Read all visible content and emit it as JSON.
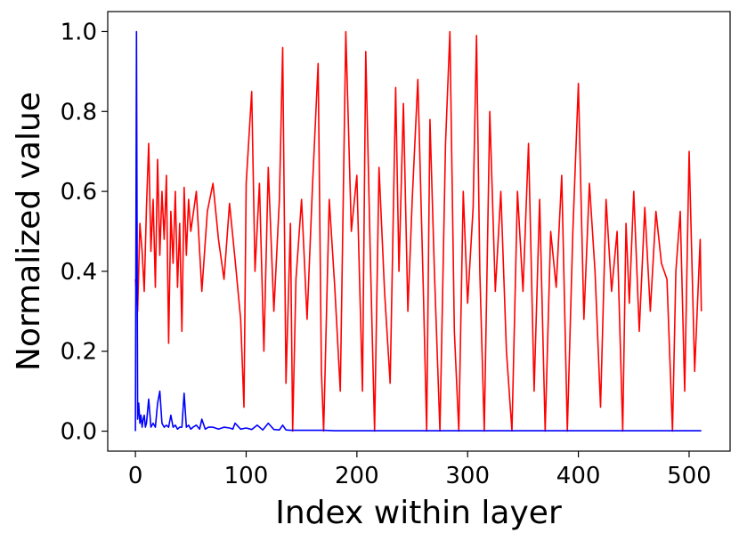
{
  "chart_data": {
    "type": "line",
    "title": "",
    "xlabel": "Index within layer",
    "ylabel": "Normalized value",
    "xlim": [
      -25,
      537
    ],
    "ylim": [
      -0.05,
      1.05
    ],
    "xticks": [
      0,
      100,
      200,
      300,
      400,
      500
    ],
    "yticks": [
      0.0,
      0.2,
      0.4,
      0.6,
      0.8,
      1.0
    ],
    "xtick_labels": [
      "0",
      "100",
      "200",
      "300",
      "400",
      "500"
    ],
    "ytick_labels": [
      "0.0",
      "0.2",
      "0.4",
      "0.6",
      "0.8",
      "1.0"
    ],
    "grid": false,
    "legend": "none",
    "series": [
      {
        "color": "#ff0000",
        "x": [
          0,
          2,
          4,
          6,
          8,
          10,
          12,
          14,
          16,
          18,
          20,
          22,
          24,
          26,
          28,
          30,
          32,
          34,
          36,
          38,
          40,
          42,
          44,
          46,
          48,
          50,
          55,
          60,
          65,
          70,
          75,
          80,
          85,
          90,
          95,
          98,
          100,
          105,
          108,
          112,
          116,
          120,
          125,
          130,
          133,
          136,
          140,
          142,
          145,
          150,
          155,
          160,
          165,
          168,
          170,
          175,
          180,
          185,
          190,
          195,
          200,
          205,
          208,
          212,
          216,
          220,
          225,
          230,
          235,
          238,
          242,
          246,
          250,
          255,
          260,
          263,
          266,
          270,
          275,
          280,
          284,
          288,
          292,
          296,
          300,
          305,
          308,
          311,
          315,
          320,
          325,
          330,
          335,
          340,
          345,
          350,
          355,
          360,
          365,
          370,
          375,
          380,
          385,
          390,
          395,
          400,
          405,
          410,
          415,
          420,
          425,
          430,
          435,
          440,
          443,
          446,
          450,
          455,
          460,
          465,
          470,
          475,
          480,
          485,
          488,
          492,
          496,
          500,
          505,
          510,
          511
        ],
        "y": [
          0.38,
          0.3,
          0.52,
          0.45,
          0.35,
          0.56,
          0.72,
          0.45,
          0.58,
          0.36,
          0.68,
          0.44,
          0.6,
          0.48,
          0.64,
          0.22,
          0.55,
          0.42,
          0.6,
          0.36,
          0.52,
          0.25,
          0.61,
          0.44,
          0.58,
          0.5,
          0.6,
          0.35,
          0.55,
          0.62,
          0.48,
          0.38,
          0.57,
          0.43,
          0.28,
          0.06,
          0.62,
          0.85,
          0.4,
          0.62,
          0.2,
          0.66,
          0.3,
          0.58,
          0.96,
          0.12,
          0.52,
          0.0,
          0.38,
          0.58,
          0.28,
          0.62,
          0.92,
          0.15,
          0.0,
          0.58,
          0.36,
          0.1,
          1.0,
          0.5,
          0.64,
          0.1,
          0.95,
          0.45,
          0.0,
          0.66,
          0.35,
          0.12,
          0.86,
          0.4,
          0.82,
          0.3,
          0.58,
          0.88,
          0.35,
          0.0,
          0.78,
          0.4,
          0.0,
          0.72,
          1.0,
          0.25,
          0.0,
          0.6,
          0.32,
          0.56,
          0.99,
          0.4,
          0.0,
          0.8,
          0.35,
          0.6,
          0.2,
          0.0,
          0.6,
          0.35,
          0.72,
          0.1,
          0.58,
          0.0,
          0.5,
          0.36,
          0.64,
          0.0,
          0.5,
          0.87,
          0.28,
          0.62,
          0.4,
          0.06,
          0.58,
          0.35,
          0.5,
          0.0,
          0.52,
          0.32,
          0.6,
          0.25,
          0.56,
          0.3,
          0.55,
          0.42,
          0.38,
          0.0,
          0.4,
          0.55,
          0.1,
          0.7,
          0.15,
          0.48,
          0.3
        ]
      },
      {
        "color": "#0000ff",
        "x": [
          0,
          1,
          2,
          3,
          4,
          5,
          6,
          7,
          8,
          9,
          10,
          12,
          14,
          16,
          18,
          20,
          22,
          24,
          26,
          28,
          30,
          32,
          34,
          36,
          38,
          40,
          42,
          44,
          46,
          48,
          50,
          52,
          55,
          58,
          60,
          63,
          66,
          70,
          75,
          80,
          85,
          88,
          90,
          95,
          100,
          105,
          110,
          115,
          120,
          125,
          130,
          133,
          136,
          140,
          150,
          160,
          170,
          180,
          190,
          200,
          210,
          220,
          240,
          260,
          280,
          300,
          320,
          340,
          360,
          380,
          400,
          420,
          440,
          460,
          480,
          500,
          511
        ],
        "y": [
          0.0,
          1.0,
          0.03,
          0.07,
          0.02,
          0.04,
          0.01,
          0.03,
          0.04,
          0.01,
          0.02,
          0.08,
          0.01,
          0.02,
          0.01,
          0.07,
          0.1,
          0.02,
          0.01,
          0.015,
          0.01,
          0.04,
          0.01,
          0.015,
          0.005,
          0.01,
          0.01,
          0.095,
          0.01,
          0.015,
          0.005,
          0.01,
          0.015,
          0.005,
          0.03,
          0.005,
          0.01,
          0.01,
          0.005,
          0.01,
          0.008,
          0.005,
          0.02,
          0.005,
          0.008,
          0.004,
          0.015,
          0.003,
          0.02,
          0.004,
          0.003,
          0.015,
          0.003,
          0.002,
          0.002,
          0.002,
          0.002,
          0.001,
          0.001,
          0.001,
          0.001,
          0.001,
          0.001,
          0.001,
          0.001,
          0.001,
          0.001,
          0.001,
          0.001,
          0.001,
          0.001,
          0.001,
          0.001,
          0.001,
          0.001,
          0.001,
          0.001
        ]
      }
    ]
  }
}
